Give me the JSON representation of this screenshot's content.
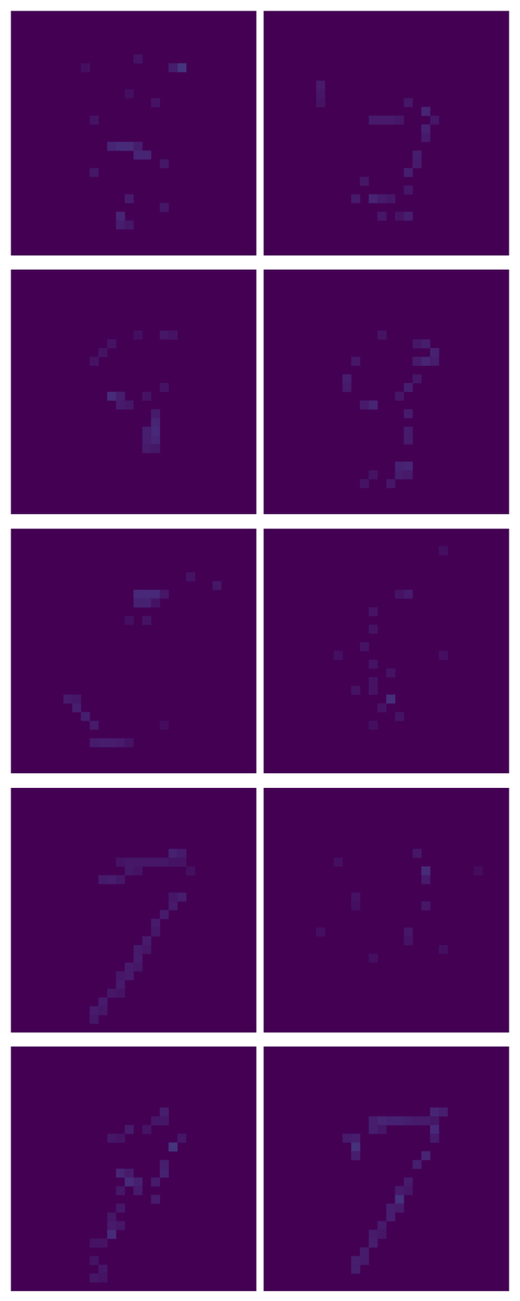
{
  "chart_data": [
    {
      "type": "heatmap",
      "size": [
        28,
        28
      ],
      "zlim": [
        0,
        1
      ],
      "tick_labels": false,
      "cells": [
        [
          14,
          5,
          0.05
        ],
        [
          19,
          6,
          0.15
        ],
        [
          18,
          6,
          0.08
        ],
        [
          8,
          6,
          0.04
        ],
        [
          13,
          9,
          0.04
        ],
        [
          16,
          10,
          0.05
        ],
        [
          9,
          12,
          0.05
        ],
        [
          11,
          15,
          0.1
        ],
        [
          12,
          15,
          0.12
        ],
        [
          13,
          15,
          0.12
        ],
        [
          14,
          15,
          0.08
        ],
        [
          14,
          16,
          0.1
        ],
        [
          15,
          16,
          0.1
        ],
        [
          17,
          17,
          0.06
        ],
        [
          9,
          18,
          0.06
        ],
        [
          13,
          21,
          0.07
        ],
        [
          17,
          22,
          0.06
        ],
        [
          12,
          23,
          0.1
        ],
        [
          12,
          24,
          0.08
        ],
        [
          13,
          24,
          0.06
        ]
      ]
    },
    {
      "type": "heatmap",
      "size": [
        28,
        28
      ],
      "zlim": [
        0,
        1
      ],
      "tick_labels": false,
      "cells": [
        [
          6,
          8,
          0.07
        ],
        [
          6,
          9,
          0.06
        ],
        [
          6,
          10,
          0.05
        ],
        [
          16,
          10,
          0.06
        ],
        [
          18,
          11,
          0.1
        ],
        [
          12,
          12,
          0.07
        ],
        [
          13,
          12,
          0.07
        ],
        [
          14,
          12,
          0.07
        ],
        [
          15,
          12,
          0.06
        ],
        [
          19,
          12,
          0.06
        ],
        [
          18,
          13,
          0.09
        ],
        [
          18,
          14,
          0.07
        ],
        [
          17,
          16,
          0.08
        ],
        [
          17,
          17,
          0.07
        ],
        [
          16,
          18,
          0.08
        ],
        [
          11,
          19,
          0.06
        ],
        [
          16,
          20,
          0.06
        ],
        [
          10,
          21,
          0.07
        ],
        [
          12,
          21,
          0.1
        ],
        [
          13,
          21,
          0.07
        ],
        [
          14,
          21,
          0.06
        ],
        [
          13,
          23,
          0.06
        ],
        [
          15,
          23,
          0.05
        ],
        [
          16,
          23,
          0.08
        ]
      ]
    },
    {
      "type": "heatmap",
      "size": [
        28,
        28
      ],
      "zlim": [
        0,
        1
      ],
      "tick_labels": false,
      "cells": [
        [
          14,
          7,
          0.04
        ],
        [
          17,
          7,
          0.06
        ],
        [
          18,
          7,
          0.05
        ],
        [
          11,
          8,
          0.05
        ],
        [
          10,
          9,
          0.05
        ],
        [
          9,
          10,
          0.05
        ],
        [
          17,
          13,
          0.05
        ],
        [
          11,
          14,
          0.12
        ],
        [
          12,
          14,
          0.08
        ],
        [
          15,
          14,
          0.05
        ],
        [
          12,
          15,
          0.07
        ],
        [
          13,
          15,
          0.06
        ],
        [
          16,
          16,
          0.07
        ],
        [
          16,
          17,
          0.1
        ],
        [
          16,
          18,
          0.11
        ],
        [
          15,
          18,
          0.08
        ],
        [
          16,
          19,
          0.1
        ],
        [
          15,
          19,
          0.08
        ],
        [
          15,
          20,
          0.07
        ],
        [
          16,
          20,
          0.06
        ]
      ]
    },
    {
      "type": "heatmap",
      "size": [
        28,
        28
      ],
      "zlim": [
        0,
        1
      ],
      "tick_labels": false,
      "cells": [
        [
          13,
          7,
          0.05
        ],
        [
          17,
          8,
          0.06
        ],
        [
          18,
          8,
          0.08
        ],
        [
          19,
          9,
          0.09
        ],
        [
          10,
          10,
          0.06
        ],
        [
          17,
          10,
          0.07
        ],
        [
          18,
          10,
          0.1
        ],
        [
          19,
          10,
          0.08
        ],
        [
          9,
          12,
          0.08
        ],
        [
          17,
          12,
          0.06
        ],
        [
          9,
          13,
          0.07
        ],
        [
          16,
          13,
          0.08
        ],
        [
          15,
          14,
          0.06
        ],
        [
          11,
          15,
          0.07
        ],
        [
          12,
          15,
          0.1
        ],
        [
          16,
          16,
          0.07
        ],
        [
          16,
          18,
          0.07
        ],
        [
          16,
          19,
          0.07
        ],
        [
          15,
          22,
          0.09
        ],
        [
          16,
          22,
          0.1
        ],
        [
          12,
          23,
          0.05
        ],
        [
          15,
          23,
          0.08
        ],
        [
          16,
          23,
          0.07
        ],
        [
          11,
          24,
          0.05
        ],
        [
          14,
          24,
          0.06
        ]
      ]
    },
    {
      "type": "heatmap",
      "size": [
        28,
        28
      ],
      "zlim": [
        0,
        1
      ],
      "tick_labels": false,
      "cells": [
        [
          20,
          5,
          0.05
        ],
        [
          23,
          6,
          0.06
        ],
        [
          14,
          7,
          0.11
        ],
        [
          15,
          7,
          0.11
        ],
        [
          16,
          7,
          0.11
        ],
        [
          17,
          7,
          0.06
        ],
        [
          14,
          8,
          0.09
        ],
        [
          15,
          8,
          0.09
        ],
        [
          16,
          8,
          0.05
        ],
        [
          13,
          10,
          0.04
        ],
        [
          15,
          10,
          0.05
        ],
        [
          6,
          19,
          0.07
        ],
        [
          7,
          19,
          0.06
        ],
        [
          7,
          20,
          0.08
        ],
        [
          8,
          21,
          0.08
        ],
        [
          9,
          22,
          0.07
        ],
        [
          17,
          22,
          0.03
        ],
        [
          9,
          24,
          0.07
        ],
        [
          10,
          24,
          0.08
        ],
        [
          11,
          24,
          0.08
        ],
        [
          12,
          24,
          0.07
        ],
        [
          13,
          24,
          0.05
        ]
      ]
    },
    {
      "type": "heatmap",
      "size": [
        28,
        28
      ],
      "zlim": [
        0,
        1
      ],
      "tick_labels": false,
      "cells": [
        [
          20,
          2,
          0.04
        ],
        [
          15,
          7,
          0.05
        ],
        [
          16,
          7,
          0.07
        ],
        [
          12,
          9,
          0.05
        ],
        [
          12,
          11,
          0.05
        ],
        [
          11,
          13,
          0.05
        ],
        [
          8,
          14,
          0.04
        ],
        [
          20,
          14,
          0.04
        ],
        [
          12,
          15,
          0.05
        ],
        [
          14,
          16,
          0.05
        ],
        [
          12,
          17,
          0.05
        ],
        [
          10,
          18,
          0.05
        ],
        [
          12,
          18,
          0.05
        ],
        [
          14,
          19,
          0.13
        ],
        [
          13,
          20,
          0.05
        ],
        [
          15,
          21,
          0.05
        ],
        [
          12,
          22,
          0.04
        ]
      ]
    },
    {
      "type": "heatmap",
      "size": [
        28,
        28
      ],
      "zlim": [
        0,
        1
      ],
      "tick_labels": false,
      "cells": [
        [
          18,
          7,
          0.09
        ],
        [
          19,
          7,
          0.07
        ],
        [
          12,
          8,
          0.05
        ],
        [
          13,
          8,
          0.06
        ],
        [
          14,
          8,
          0.06
        ],
        [
          15,
          8,
          0.06
        ],
        [
          16,
          8,
          0.06
        ],
        [
          17,
          8,
          0.06
        ],
        [
          18,
          8,
          0.05
        ],
        [
          19,
          8,
          0.05
        ],
        [
          13,
          9,
          0.06
        ],
        [
          14,
          9,
          0.05
        ],
        [
          20,
          9,
          0.04
        ],
        [
          10,
          10,
          0.07
        ],
        [
          11,
          10,
          0.08
        ],
        [
          12,
          10,
          0.06
        ],
        [
          18,
          12,
          0.06
        ],
        [
          19,
          12,
          0.08
        ],
        [
          18,
          13,
          0.07
        ],
        [
          17,
          14,
          0.07
        ],
        [
          16,
          15,
          0.07
        ],
        [
          16,
          16,
          0.06
        ],
        [
          15,
          17,
          0.07
        ],
        [
          14,
          18,
          0.07
        ],
        [
          15,
          18,
          0.06
        ],
        [
          14,
          19,
          0.07
        ],
        [
          13,
          20,
          0.07
        ],
        [
          14,
          20,
          0.06
        ],
        [
          12,
          21,
          0.06
        ],
        [
          13,
          21,
          0.07
        ],
        [
          12,
          22,
          0.07
        ],
        [
          11,
          23,
          0.06
        ],
        [
          12,
          23,
          0.05
        ],
        [
          10,
          24,
          0.07
        ],
        [
          9,
          25,
          0.07
        ],
        [
          10,
          25,
          0.06
        ],
        [
          9,
          26,
          0.06
        ]
      ]
    },
    {
      "type": "heatmap",
      "size": [
        28,
        28
      ],
      "zlim": [
        0,
        1
      ],
      "tick_labels": false,
      "cells": [
        [
          17,
          7,
          0.06
        ],
        [
          8,
          8,
          0.04
        ],
        [
          18,
          9,
          0.12
        ],
        [
          24,
          9,
          0.03
        ],
        [
          18,
          10,
          0.07
        ],
        [
          10,
          12,
          0.05
        ],
        [
          10,
          13,
          0.04
        ],
        [
          18,
          13,
          0.06
        ],
        [
          6,
          16,
          0.04
        ],
        [
          16,
          16,
          0.06
        ],
        [
          16,
          17,
          0.05
        ],
        [
          20,
          18,
          0.04
        ],
        [
          12,
          19,
          0.04
        ]
      ]
    },
    {
      "type": "heatmap",
      "size": [
        28,
        28
      ],
      "zlim": [
        0,
        1
      ],
      "tick_labels": false,
      "cells": [
        [
          17,
          7,
          0.08
        ],
        [
          16,
          8,
          0.06
        ],
        [
          17,
          8,
          0.06
        ],
        [
          13,
          9,
          0.07
        ],
        [
          15,
          9,
          0.05
        ],
        [
          11,
          10,
          0.06
        ],
        [
          12,
          10,
          0.05
        ],
        [
          19,
          10,
          0.06
        ],
        [
          18,
          11,
          0.15
        ],
        [
          17,
          13,
          0.08
        ],
        [
          12,
          14,
          0.1
        ],
        [
          13,
          14,
          0.07
        ],
        [
          17,
          14,
          0.09
        ],
        [
          13,
          15,
          0.12
        ],
        [
          14,
          15,
          0.09
        ],
        [
          16,
          15,
          0.07
        ],
        [
          12,
          16,
          0.06
        ],
        [
          14,
          16,
          0.07
        ],
        [
          16,
          17,
          0.07
        ],
        [
          12,
          18,
          0.06
        ],
        [
          11,
          19,
          0.06
        ],
        [
          11,
          20,
          0.07
        ],
        [
          12,
          20,
          0.06
        ],
        [
          11,
          21,
          0.12
        ],
        [
          9,
          22,
          0.05
        ],
        [
          10,
          22,
          0.05
        ],
        [
          9,
          24,
          0.05
        ],
        [
          10,
          25,
          0.06
        ],
        [
          9,
          26,
          0.06
        ],
        [
          10,
          26,
          0.05
        ]
      ]
    },
    {
      "type": "heatmap",
      "size": [
        28,
        28
      ],
      "zlim": [
        0,
        1
      ],
      "tick_labels": false,
      "cells": [
        [
          19,
          7,
          0.1
        ],
        [
          20,
          7,
          0.08
        ],
        [
          12,
          8,
          0.08
        ],
        [
          13,
          8,
          0.1
        ],
        [
          14,
          8,
          0.09
        ],
        [
          15,
          8,
          0.09
        ],
        [
          16,
          8,
          0.08
        ],
        [
          17,
          8,
          0.07
        ],
        [
          18,
          8,
          0.07
        ],
        [
          19,
          8,
          0.06
        ],
        [
          12,
          9,
          0.08
        ],
        [
          13,
          9,
          0.06
        ],
        [
          19,
          9,
          0.11
        ],
        [
          9,
          10,
          0.07
        ],
        [
          10,
          10,
          0.08
        ],
        [
          19,
          10,
          0.07
        ],
        [
          10,
          11,
          0.14
        ],
        [
          10,
          12,
          0.08
        ],
        [
          18,
          12,
          0.1
        ],
        [
          17,
          13,
          0.08
        ],
        [
          16,
          15,
          0.07
        ],
        [
          15,
          16,
          0.07
        ],
        [
          16,
          16,
          0.06
        ],
        [
          15,
          17,
          0.14
        ],
        [
          14,
          18,
          0.08
        ],
        [
          15,
          18,
          0.07
        ],
        [
          14,
          19,
          0.08
        ],
        [
          13,
          20,
          0.07
        ],
        [
          12,
          21,
          0.07
        ],
        [
          13,
          21,
          0.06
        ],
        [
          12,
          22,
          0.08
        ],
        [
          11,
          23,
          0.07
        ],
        [
          10,
          24,
          0.08
        ],
        [
          11,
          24,
          0.07
        ],
        [
          10,
          25,
          0.08
        ]
      ]
    }
  ]
}
